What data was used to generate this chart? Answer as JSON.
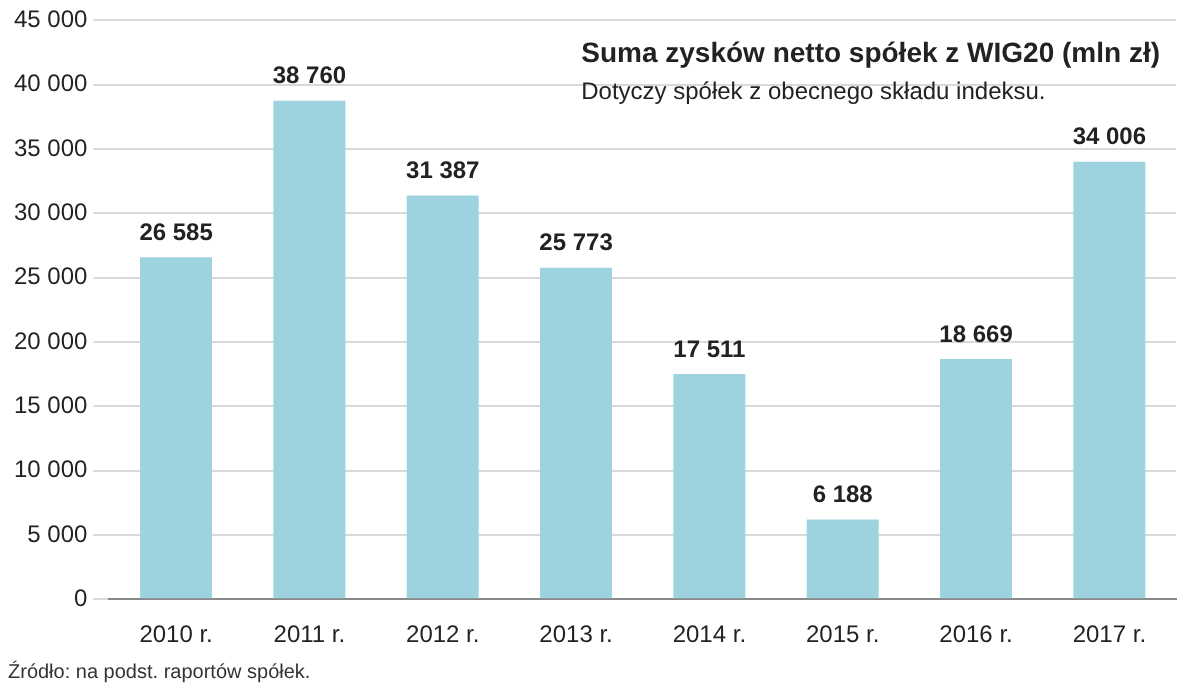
{
  "chart_data": {
    "type": "bar",
    "title": "Suma zysków netto spółek z WIG20 (mln zł)",
    "subtitle": "Dotyczy spółek z obecnego składu indeksu.",
    "categories": [
      "2010 r.",
      "2011 r.",
      "2012 r.",
      "2013 r.",
      "2014 r.",
      "2015 r.",
      "2016 r.",
      "2017 r."
    ],
    "values": [
      26585,
      38760,
      31387,
      25773,
      17511,
      6188,
      18669,
      34006
    ],
    "value_labels": [
      "26 585",
      "38 760",
      "31 387",
      "25 773",
      "17 511",
      "6 188",
      "18 669",
      "34 006"
    ],
    "color": "#9dd3df",
    "ylim": [
      0,
      45000
    ],
    "yticks": [
      {
        "value": 0,
        "label": "0"
      },
      {
        "value": 5000,
        "label": "5 000"
      },
      {
        "value": 10000,
        "label": "10 000"
      },
      {
        "value": 15000,
        "label": "15 000"
      },
      {
        "value": 20000,
        "label": "20 000"
      },
      {
        "value": 25000,
        "label": "25 000"
      },
      {
        "value": 30000,
        "label": "30 000"
      },
      {
        "value": 35000,
        "label": "35 000"
      },
      {
        "value": 40000,
        "label": "40 000"
      },
      {
        "value": 45000,
        "label": "45 000"
      }
    ],
    "grid": "y",
    "legend": false,
    "annotations": [
      "Źródło: na podst. raportów spółek."
    ]
  }
}
